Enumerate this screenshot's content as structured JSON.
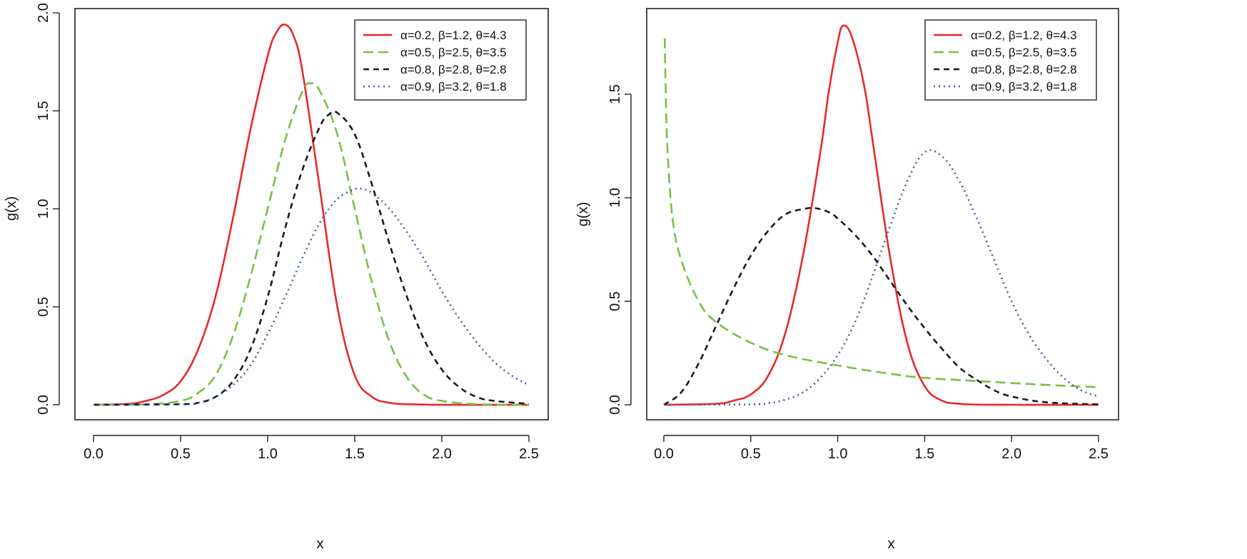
{
  "chart_data": [
    {
      "type": "line",
      "title": "",
      "xlabel": "x",
      "ylabel": "g(x)",
      "xlim": [
        0,
        2.5
      ],
      "ylim": [
        0,
        2.0
      ],
      "xticks": [
        0,
        0.5,
        1,
        1.5,
        2,
        2.5
      ],
      "xtick_labels": [
        "0.0",
        "0.5",
        "1.0",
        "1.5",
        "2.0",
        "2.5"
      ],
      "yticks": [
        0,
        0.5,
        1,
        1.5,
        2
      ],
      "ytick_labels": [
        "0.0",
        "0.5",
        "1.0",
        "1.5",
        "2.0"
      ],
      "legend_position": "top-right",
      "grid": false,
      "series": [
        {
          "name": "α=0.2, β=1.2, θ=4.3",
          "color": "#e8282e",
          "dash": "solid",
          "x": [
            0,
            0.2,
            0.3,
            0.4,
            0.5,
            0.6,
            0.7,
            0.8,
            0.9,
            1.0,
            1.05,
            1.1,
            1.15,
            1.2,
            1.3,
            1.4,
            1.5,
            1.6,
            1.7,
            1.8,
            2.0,
            2.5
          ],
          "y": [
            0,
            0.005,
            0.02,
            0.05,
            0.12,
            0.28,
            0.55,
            0.95,
            1.4,
            1.78,
            1.9,
            1.94,
            1.88,
            1.7,
            1.1,
            0.5,
            0.15,
            0.04,
            0.01,
            0.003,
            0,
            0
          ]
        },
        {
          "name": "α=0.5, β=2.5, θ=3.5",
          "color": "#78c043",
          "dash": "long-dash",
          "x": [
            0,
            0.3,
            0.5,
            0.6,
            0.7,
            0.8,
            0.9,
            1.0,
            1.1,
            1.2,
            1.25,
            1.3,
            1.4,
            1.5,
            1.6,
            1.7,
            1.8,
            1.9,
            2.0,
            2.2,
            2.5
          ],
          "y": [
            0,
            0.002,
            0.02,
            0.06,
            0.15,
            0.35,
            0.65,
            1.0,
            1.35,
            1.6,
            1.64,
            1.6,
            1.38,
            1.0,
            0.62,
            0.32,
            0.14,
            0.05,
            0.02,
            0.003,
            0
          ]
        },
        {
          "name": "α=0.8, β=2.8, θ=2.8",
          "color": "#1a1a1a",
          "dash": "dash",
          "x": [
            0,
            0.5,
            0.6,
            0.7,
            0.8,
            0.9,
            1.0,
            1.1,
            1.2,
            1.3,
            1.35,
            1.4,
            1.5,
            1.6,
            1.7,
            1.8,
            1.9,
            2.0,
            2.1,
            2.2,
            2.3,
            2.5
          ],
          "y": [
            0,
            0.003,
            0.01,
            0.04,
            0.12,
            0.28,
            0.55,
            0.9,
            1.2,
            1.42,
            1.48,
            1.49,
            1.38,
            1.12,
            0.82,
            0.55,
            0.33,
            0.18,
            0.09,
            0.04,
            0.02,
            0.005
          ]
        },
        {
          "name": "α=0.9, β=3.2, θ=1.8",
          "color": "#3f5fae",
          "dash": "dot",
          "x": [
            0,
            0.5,
            0.6,
            0.7,
            0.8,
            0.9,
            1.0,
            1.1,
            1.2,
            1.3,
            1.4,
            1.5,
            1.55,
            1.6,
            1.7,
            1.8,
            1.9,
            2.0,
            2.1,
            2.2,
            2.3,
            2.4,
            2.5
          ],
          "y": [
            0,
            0.003,
            0.01,
            0.04,
            0.1,
            0.2,
            0.36,
            0.55,
            0.75,
            0.93,
            1.05,
            1.1,
            1.1,
            1.08,
            1.0,
            0.88,
            0.74,
            0.58,
            0.44,
            0.32,
            0.22,
            0.15,
            0.1
          ]
        }
      ]
    },
    {
      "type": "line",
      "title": "",
      "xlabel": "x",
      "ylabel": "g(x)",
      "xlim": [
        0,
        2.5
      ],
      "ylim": [
        0,
        1.85
      ],
      "xticks": [
        0,
        0.5,
        1,
        1.5,
        2,
        2.5
      ],
      "xtick_labels": [
        "0.0",
        "0.5",
        "1.0",
        "1.5",
        "2.0",
        "2.5"
      ],
      "yticks": [
        0,
        0.5,
        1,
        1.5
      ],
      "ytick_labels": [
        "0.0",
        "0.5",
        "1.0",
        "1.5"
      ],
      "legend_position": "top-right",
      "grid": false,
      "series": [
        {
          "name": "α=0.2, β=1.2, θ=4.3",
          "color": "#e8282e",
          "dash": "solid",
          "x": [
            0,
            0.3,
            0.4,
            0.5,
            0.6,
            0.7,
            0.8,
            0.9,
            0.95,
            1.0,
            1.03,
            1.08,
            1.15,
            1.2,
            1.3,
            1.4,
            1.5,
            1.6,
            1.7,
            1.8,
            2.0,
            2.5
          ],
          "y": [
            0,
            0.005,
            0.02,
            0.05,
            0.14,
            0.35,
            0.72,
            1.22,
            1.52,
            1.75,
            1.83,
            1.78,
            1.55,
            1.28,
            0.72,
            0.3,
            0.09,
            0.02,
            0.005,
            0.001,
            0,
            0
          ]
        },
        {
          "name": "α=0.5, β=2.5, θ=3.5",
          "color": "#78c043",
          "dash": "long-dash",
          "x": [
            0.005,
            0.01,
            0.02,
            0.05,
            0.1,
            0.2,
            0.3,
            0.5,
            0.7,
            1.0,
            1.3,
            1.5,
            1.8,
            2.0,
            2.3,
            2.5
          ],
          "y": [
            1.77,
            1.55,
            1.25,
            0.9,
            0.7,
            0.5,
            0.4,
            0.3,
            0.24,
            0.19,
            0.15,
            0.13,
            0.115,
            0.105,
            0.092,
            0.085
          ]
        },
        {
          "name": "α=0.8, β=2.8, θ=2.8",
          "color": "#1a1a1a",
          "dash": "dash",
          "x": [
            0,
            0.1,
            0.2,
            0.3,
            0.4,
            0.5,
            0.6,
            0.7,
            0.8,
            0.87,
            0.95,
            1.0,
            1.1,
            1.2,
            1.3,
            1.4,
            1.5,
            1.6,
            1.7,
            1.8,
            1.9,
            2.0,
            2.2,
            2.5
          ],
          "y": [
            0,
            0.06,
            0.2,
            0.38,
            0.56,
            0.72,
            0.84,
            0.92,
            0.945,
            0.95,
            0.93,
            0.9,
            0.82,
            0.72,
            0.6,
            0.48,
            0.37,
            0.27,
            0.18,
            0.12,
            0.07,
            0.04,
            0.012,
            0.002
          ]
        },
        {
          "name": "α=0.9, β=3.2, θ=1.8",
          "color": "#3f5fae",
          "dash": "dot",
          "x": [
            0,
            0.5,
            0.6,
            0.7,
            0.8,
            0.9,
            1.0,
            1.1,
            1.2,
            1.3,
            1.4,
            1.5,
            1.6,
            1.7,
            1.8,
            1.9,
            2.0,
            2.1,
            2.2,
            2.3,
            2.4,
            2.5
          ],
          "y": [
            0,
            0.002,
            0.008,
            0.025,
            0.06,
            0.13,
            0.24,
            0.4,
            0.62,
            0.86,
            1.08,
            1.22,
            1.2,
            1.08,
            0.9,
            0.7,
            0.5,
            0.34,
            0.22,
            0.13,
            0.07,
            0.04
          ]
        }
      ]
    }
  ]
}
